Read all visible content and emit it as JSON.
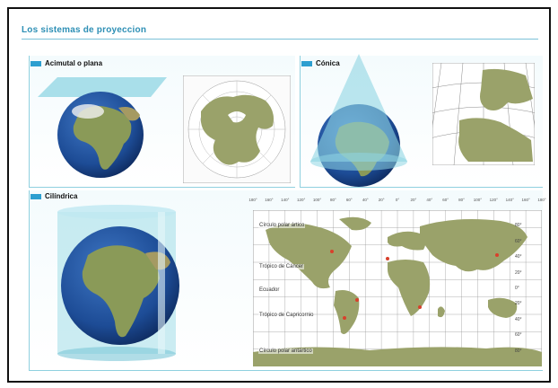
{
  "title": "Los sistemas de proyeccion",
  "sections": {
    "azimuthal": {
      "label": "Acimutal o plana"
    },
    "conic": {
      "label": "Cónica"
    },
    "cylindrical": {
      "label": "Cilíndrica"
    }
  },
  "world_map": {
    "circle_labels": [
      "Círculo polar ártico",
      "Trópico de Cáncer",
      "Ecuador",
      "Trópico de Capricornio",
      "Círculo polar antártico"
    ],
    "latitude_labels": [
      "80°",
      "60°",
      "40°",
      "20°",
      "0°",
      "20°",
      "40°",
      "60°",
      "80°"
    ],
    "longitude_labels": [
      "180°",
      "160°",
      "140°",
      "120°",
      "100°",
      "80°",
      "60°",
      "40°",
      "20°",
      "0°",
      "20°",
      "40°",
      "60°",
      "80°",
      "100°",
      "120°",
      "140°",
      "160°",
      "180°"
    ]
  },
  "colors": {
    "title": "#2d8fb5",
    "projection_surface": "#8fd6e3",
    "ocean": "#1f4f9c",
    "land": "#8a9a58",
    "map_land": "#9aa26a",
    "grid": "#6a6a6a"
  }
}
